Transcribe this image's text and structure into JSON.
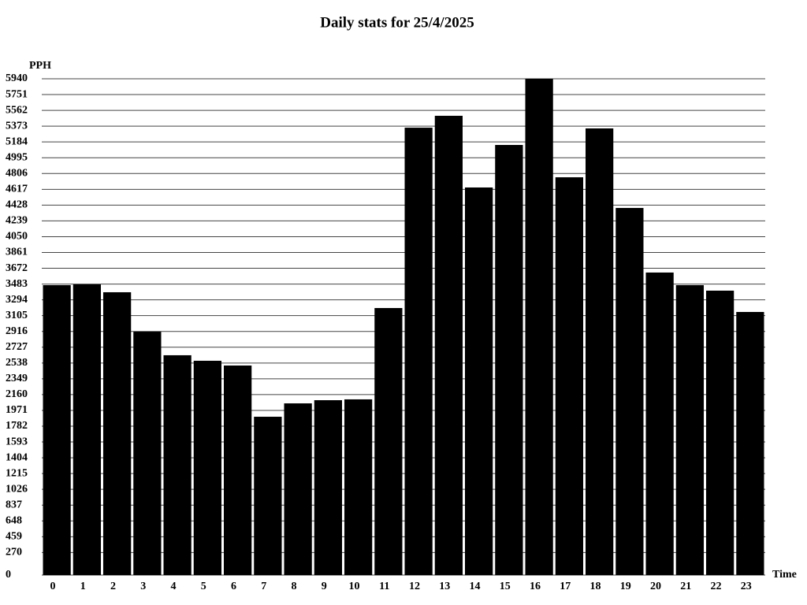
{
  "chart_data": {
    "type": "bar",
    "title": "Daily stats for 25/4/2025",
    "y_label": "PPH",
    "x_label": "Time",
    "categories": [
      "0",
      "1",
      "2",
      "3",
      "4",
      "5",
      "6",
      "7",
      "8",
      "9",
      "10",
      "11",
      "12",
      "13",
      "14",
      "15",
      "16",
      "17",
      "18",
      "19",
      "20",
      "21",
      "22",
      "23"
    ],
    "values": [
      3470,
      3479,
      3385,
      2913,
      2631,
      2565,
      2508,
      1895,
      2055,
      2093,
      2103,
      3196,
      5355,
      5497,
      4639,
      5148,
      5940,
      4761,
      5346,
      4394,
      3621,
      3470,
      3404,
      3149
    ],
    "color": "#000000",
    "ylim": [
      0,
      5940
    ],
    "yticks": [
      0,
      270,
      459,
      648,
      837,
      1026,
      1215,
      1404,
      1593,
      1782,
      1971,
      2160,
      2349,
      2538,
      2727,
      2916,
      3105,
      3294,
      3483,
      3672,
      3861,
      4050,
      4239,
      4428,
      4617,
      4806,
      4995,
      5184,
      5373,
      5562,
      5751,
      5940
    ],
    "grid": true
  }
}
